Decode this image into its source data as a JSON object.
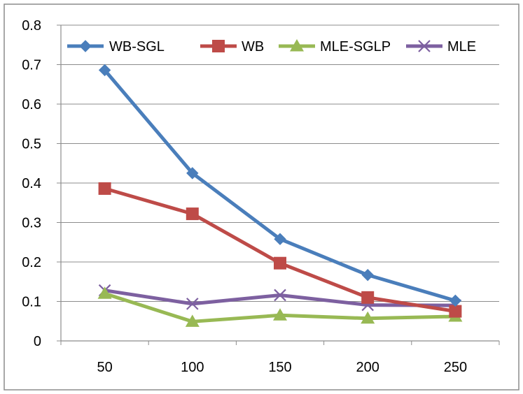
{
  "chart_data": {
    "type": "line",
    "title": "",
    "xlabel": "",
    "ylabel": "",
    "categories": [
      "50",
      "100",
      "150",
      "200",
      "250"
    ],
    "x": [
      50,
      100,
      150,
      200,
      250
    ],
    "ylim": [
      0,
      0.8
    ],
    "yticks": [
      0,
      0.1,
      0.2,
      0.3,
      0.4,
      0.5,
      0.6,
      0.7,
      0.8
    ],
    "ytick_labels": [
      "0",
      "0.1",
      "0.2",
      "0.3",
      "0.4",
      "0.5",
      "0.6",
      "0.7",
      "0.8"
    ],
    "grid": true,
    "legend_position": "top",
    "series": [
      {
        "name": "WB-SGL",
        "values": [
          0.686,
          0.425,
          0.258,
          0.167,
          0.102
        ],
        "color": "#4a7ebb",
        "marker": "diamond"
      },
      {
        "name": "WB",
        "values": [
          0.386,
          0.322,
          0.197,
          0.11,
          0.075
        ],
        "color": "#be4b48",
        "marker": "square"
      },
      {
        "name": "MLE-SGLP",
        "values": [
          0.12,
          0.049,
          0.065,
          0.057,
          0.062
        ],
        "color": "#98b954",
        "marker": "triangle"
      },
      {
        "name": "MLE",
        "values": [
          0.128,
          0.094,
          0.116,
          0.091,
          0.09
        ],
        "color": "#7d60a0",
        "marker": "x"
      }
    ]
  }
}
